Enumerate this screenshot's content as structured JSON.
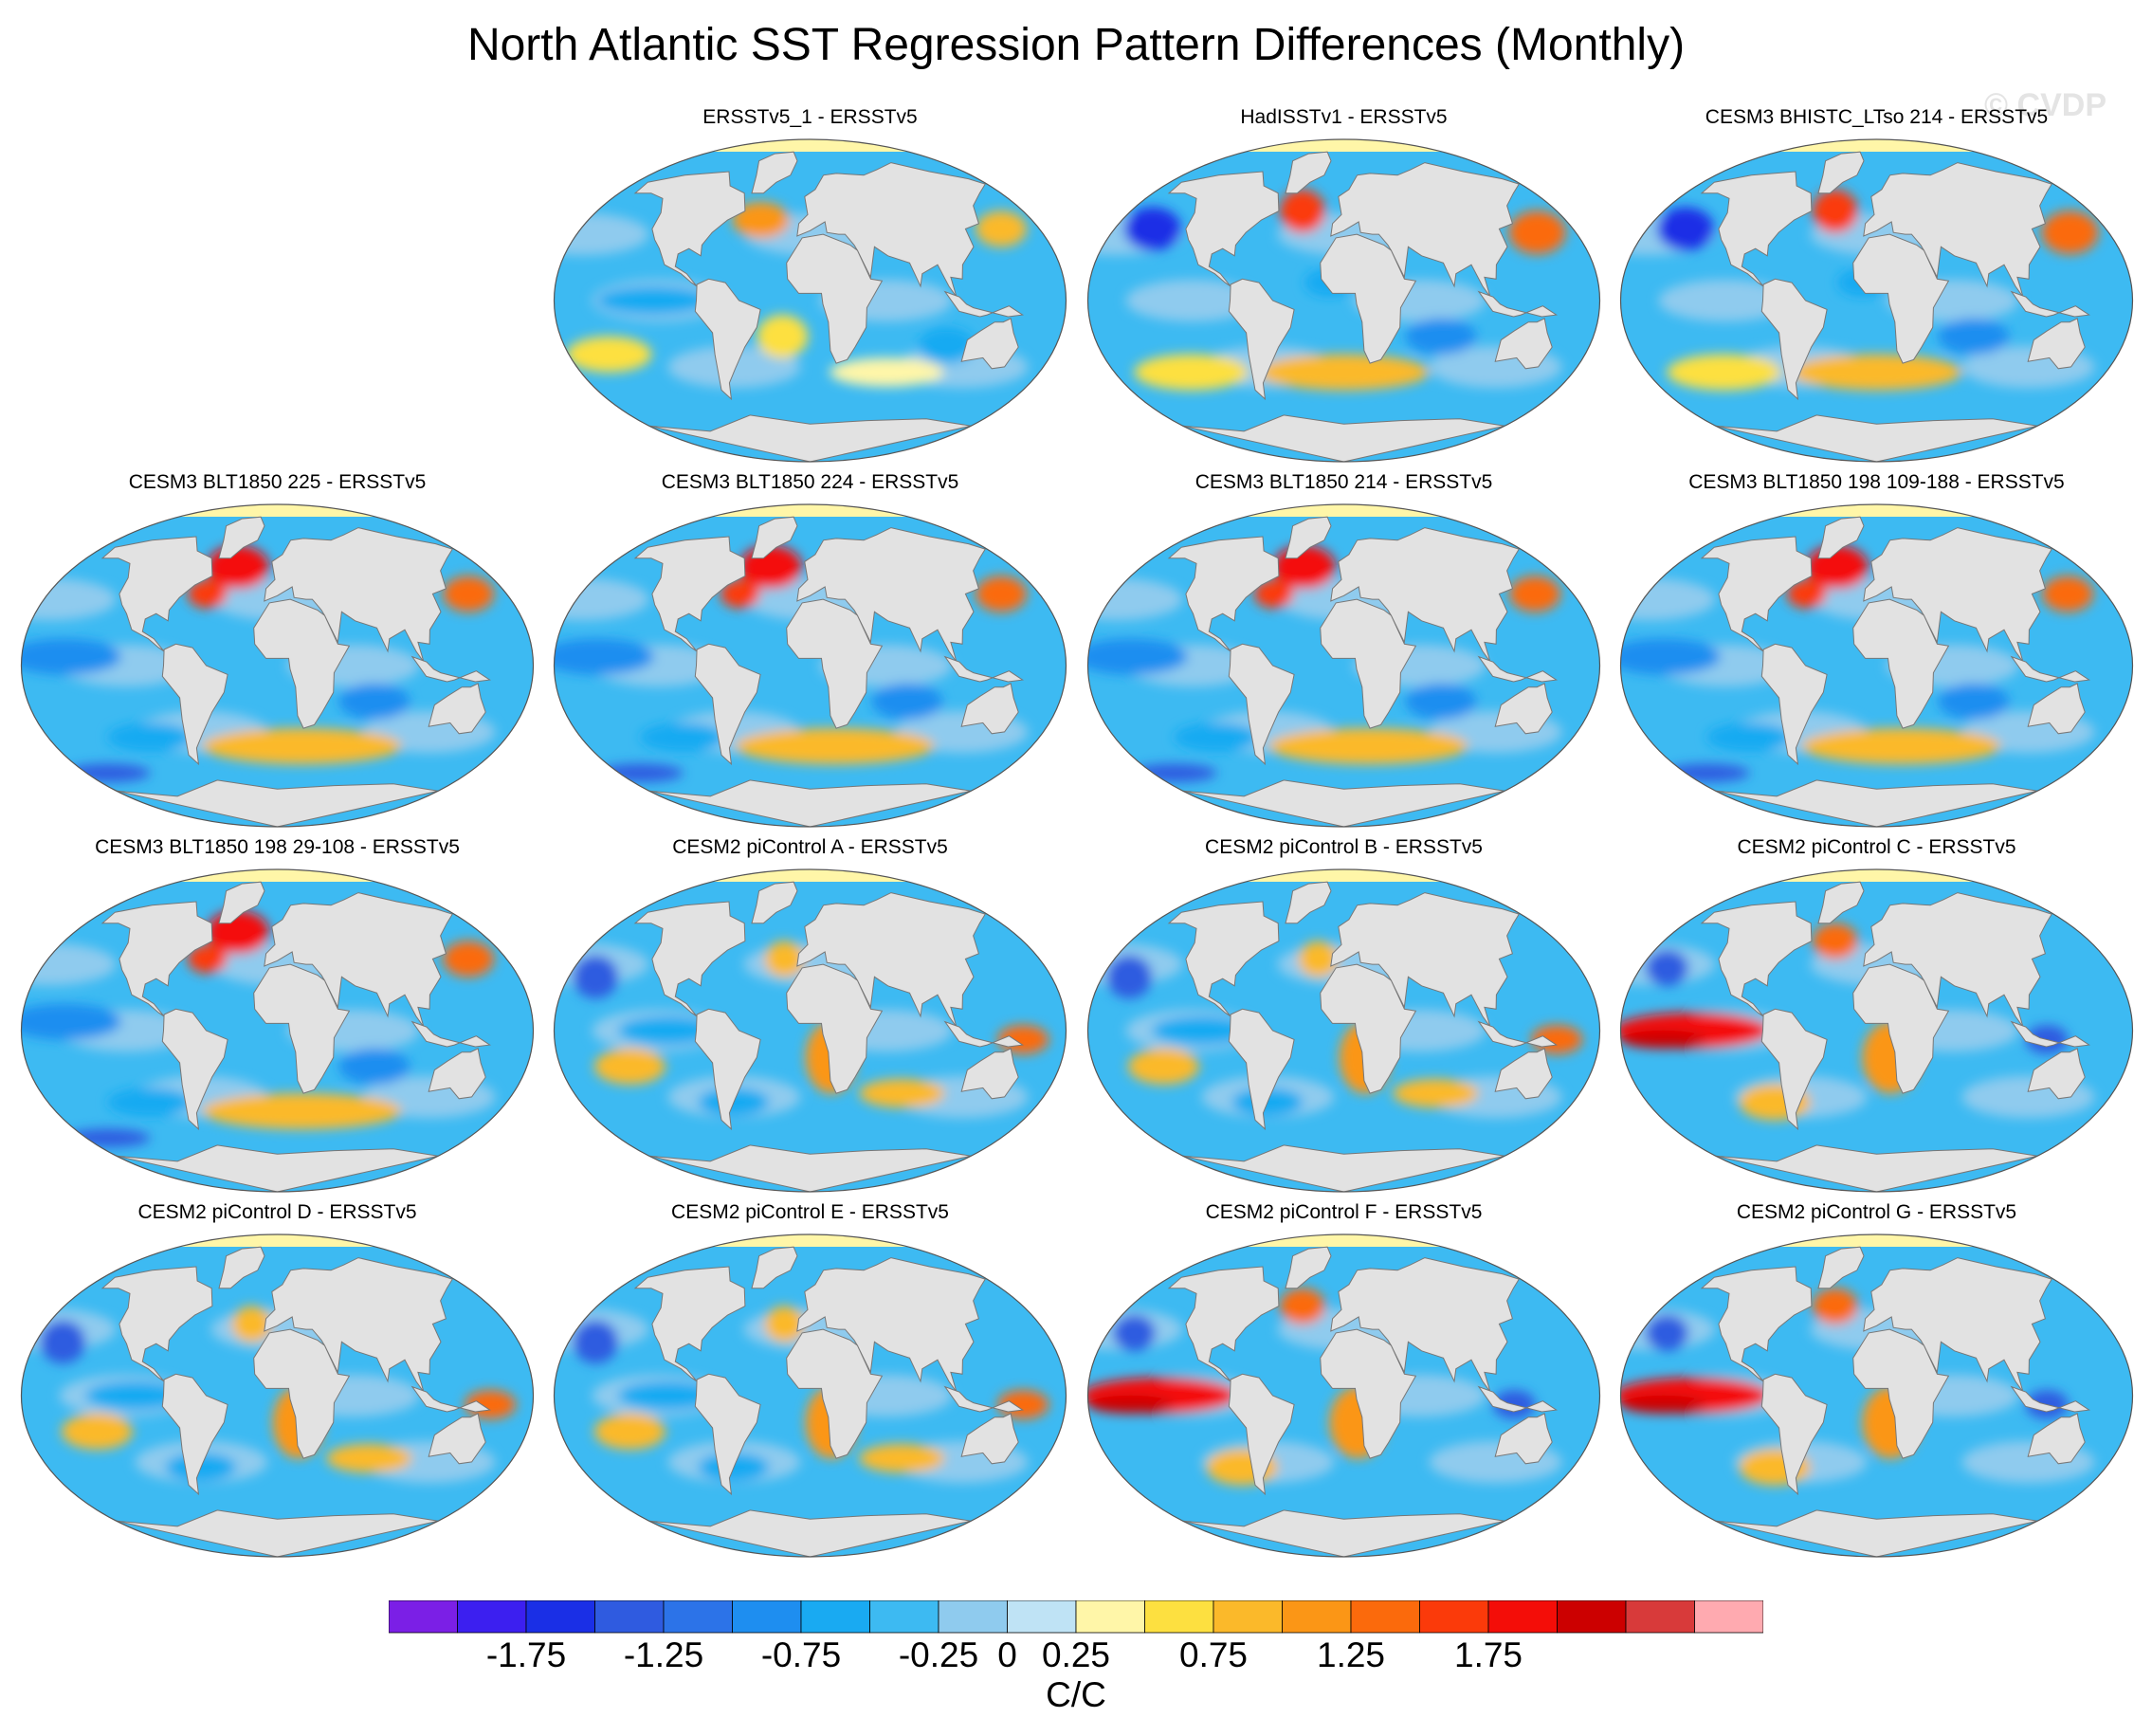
{
  "chart_data": {
    "type": "heatmap",
    "title": "North Atlantic SST Regression Pattern Differences (Monthly)",
    "watermark": "© CVDP",
    "projection": "global map panels",
    "panels": [
      {
        "title": "ERSSTv5_1 - ERSSTv5",
        "style": "weak"
      },
      {
        "title": "HadISSTv1 - ERSSTv5",
        "style": "mixed"
      },
      {
        "title": "CESM3 BHISTC_LTso 214 - ERSSTv5",
        "style": "mixed"
      },
      {
        "title": "CESM3 BLT1850 225 - ERSSTv5",
        "style": "natl"
      },
      {
        "title": "CESM3 BLT1850 224 - ERSSTv5",
        "style": "natl"
      },
      {
        "title": "CESM3 BLT1850 214 - ERSSTv5",
        "style": "natl"
      },
      {
        "title": "CESM3 BLT1850 198 109-188 - ERSSTv5",
        "style": "natl"
      },
      {
        "title": "CESM3 BLT1850 198 29-108 - ERSSTv5",
        "style": "natl"
      },
      {
        "title": "CESM2 piControl A - ERSSTv5",
        "style": "pi"
      },
      {
        "title": "CESM2 piControl B - ERSSTv5",
        "style": "pi"
      },
      {
        "title": "CESM2 piControl C - ERSSTv5",
        "style": "enso"
      },
      {
        "title": "CESM2 piControl D - ERSSTv5",
        "style": "pi"
      },
      {
        "title": "CESM2 piControl E - ERSSTv5",
        "style": "pi"
      },
      {
        "title": "CESM2 piControl F - ERSSTv5",
        "style": "enso"
      },
      {
        "title": "CESM2 piControl G - ERSSTv5",
        "style": "enso"
      }
    ],
    "colorbar": {
      "units": "C/C",
      "levels": [
        -2,
        -1.75,
        -1.5,
        -1.25,
        -1,
        -0.75,
        -0.5,
        -0.25,
        0,
        0.25,
        0.5,
        0.75,
        1,
        1.25,
        1.5,
        1.75,
        2
      ],
      "colors": [
        "#7b1fe6",
        "#3c1ff0",
        "#1a2fe6",
        "#2f5be0",
        "#2c73e8",
        "#1e8ef0",
        "#19aaf2",
        "#3dbaf2",
        "#8fcbee",
        "#bfe3f5",
        "#fff6a8",
        "#fde040",
        "#fbb92a",
        "#fb9616",
        "#fb6a0c",
        "#fb3a0a",
        "#f40d08",
        "#cc0000",
        "#d83a3a",
        "#ffaab0"
      ],
      "tick_labels": [
        "-1.75",
        "-1.25",
        "-0.75",
        "-0.25",
        "0",
        "0.25",
        "0.75",
        "1.25",
        "1.75"
      ],
      "tick_values": [
        -1.75,
        -1.25,
        -0.75,
        -0.25,
        0,
        0.25,
        0.75,
        1.25,
        1.75
      ]
    }
  }
}
